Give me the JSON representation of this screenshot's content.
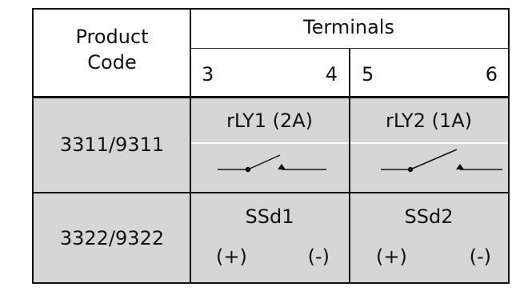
{
  "header": {
    "product_code_label": "Product Code",
    "product_code_line1": "Product",
    "product_code_line2": "Code",
    "terminals_label": "Terminals",
    "terminal_numbers": [
      "3",
      "4",
      "5",
      "6"
    ]
  },
  "rows": [
    {
      "code": "3311/9311",
      "outputs": [
        {
          "name": "rLY1 (2A)",
          "type": "relay"
        },
        {
          "name": "rLY2 (1A)",
          "type": "relay"
        }
      ]
    },
    {
      "code": "3322/9322",
      "outputs": [
        {
          "name": "SSd1",
          "polarity": [
            "(+)",
            "(-)"
          ]
        },
        {
          "name": "SSd2",
          "polarity": [
            "(+)",
            "(-)"
          ]
        }
      ]
    }
  ],
  "colors": {
    "grid": "#111111",
    "shaded_row": "#d6d6d6",
    "background": "#ffffff"
  }
}
